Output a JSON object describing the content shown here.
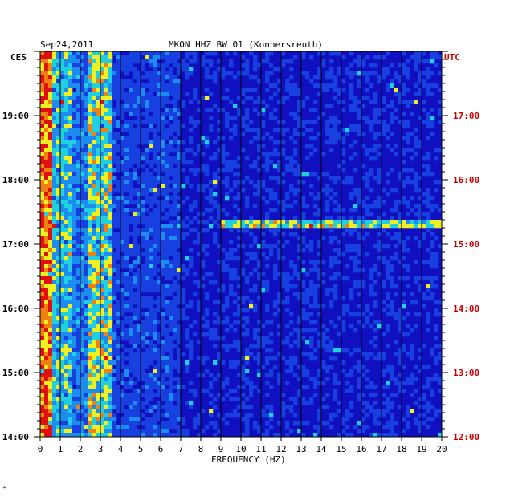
{
  "header": {
    "date": "Sep24,2011",
    "station": "MKON HHZ BW 01 (Konnersreuth)",
    "left_zone": "CES",
    "right_zone": "UTC"
  },
  "colors": {
    "left_time": "#000000",
    "right_time": "#cc0000",
    "background_band": "#1010c0",
    "scale": [
      "#1010a8",
      "#1840e0",
      "#1c8cf0",
      "#20d0e0",
      "#f0f020",
      "#f08010",
      "#e01010"
    ]
  },
  "chart_data": {
    "type": "heatmap",
    "title": "MKON HHZ BW 01 (Konnersreuth)",
    "xlabel": "FREQUENCY (HZ)",
    "xlim": [
      0,
      20
    ],
    "x_ticks": [
      "0",
      "1",
      "2",
      "3",
      "4",
      "5",
      "6",
      "7",
      "8",
      "9",
      "10",
      "11",
      "12",
      "13",
      "14",
      "15",
      "16",
      "17",
      "18",
      "19",
      "20"
    ],
    "left_time_ticks": [
      "14:00",
      "15:00",
      "16:00",
      "17:00",
      "18:00",
      "19:00"
    ],
    "right_time_ticks": [
      "12:00",
      "13:00",
      "14:00",
      "15:00",
      "16:00",
      "17:00"
    ],
    "time_range_local": [
      "14:00",
      "20:00"
    ],
    "grid": "vertical lines at each 1 Hz",
    "features": [
      {
        "description_freq_hz": [
          0,
          0.6
        ],
        "intensity": "high",
        "span": "full"
      },
      {
        "description_freq_hz": [
          2.5,
          3.5
        ],
        "intensity": "medium-high",
        "span": "full"
      },
      {
        "description_freq_hz": [
          9,
          20
        ],
        "intensity": "medium",
        "time_local": "17:22"
      }
    ]
  },
  "footer_mark": "*"
}
